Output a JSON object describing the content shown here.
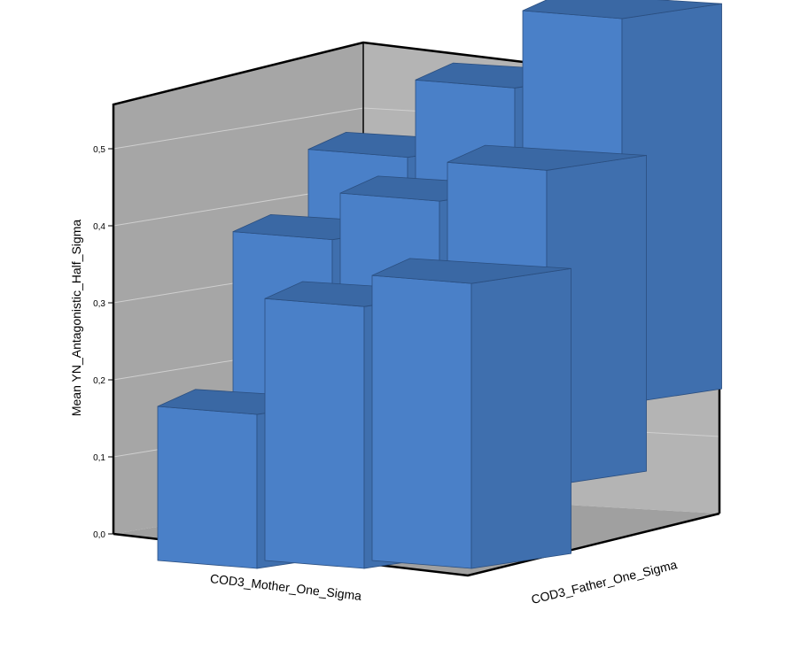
{
  "chart_data": {
    "type": "bar",
    "subtype": "3d-clustered",
    "title": "",
    "ylabel": "Mean YN_Antagonistic_Half_Sigma",
    "xlabel": "COD3_Mother_One_Sigma",
    "zlabel": "COD3_Father_One_Sigma",
    "ylim": [
      0,
      0.5
    ],
    "yticks": [
      "0,0",
      "0,1",
      "0,2",
      "0,3",
      "0,4",
      "0,5"
    ],
    "grid": true,
    "bar_color": "#4a80c8",
    "back_wall_color": "#b4b4b4",
    "floor_color": "#a0a0a0",
    "categories_mother": [
      "",
      "",
      ""
    ],
    "categories_father": [
      "",
      "",
      ""
    ],
    "series": [
      {
        "values": [
          0.32,
          0.41,
          0.51
        ]
      },
      {
        "values": [
          0.32,
          0.37,
          0.41
        ]
      },
      {
        "values": [
          0.2,
          0.34,
          0.37
        ]
      }
    ]
  }
}
